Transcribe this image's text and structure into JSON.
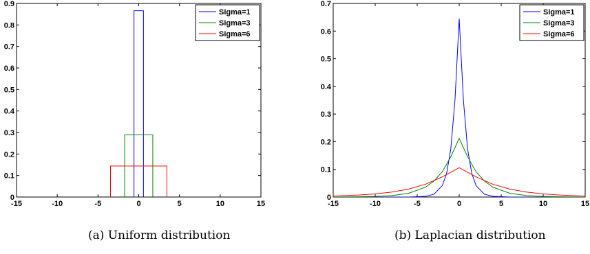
{
  "chart_data": [
    {
      "type": "line",
      "title": "",
      "caption": "(a) Uniform distribution",
      "xlabel": "",
      "ylabel": "",
      "xlim": [
        -15,
        15
      ],
      "ylim": [
        0,
        0.9
      ],
      "xticks": [
        -15,
        -10,
        -5,
        0,
        5,
        10,
        15
      ],
      "yticks": [
        0,
        0.1,
        0.2,
        0.3,
        0.4,
        0.5,
        0.6,
        0.7,
        0.8,
        0.9
      ],
      "ytick_labels": [
        "0",
        "0.1",
        "0.2",
        "0.3",
        "0.4",
        "0.5",
        "0.6",
        "0.7",
        "0.8",
        "0.9"
      ],
      "xtick_labels": [
        "-15",
        "-10",
        "-5",
        "0",
        "5",
        "10",
        "15"
      ],
      "grid": false,
      "legend_position": "top-right",
      "series": [
        {
          "name": "Sigma=1",
          "color": "#0000ff",
          "x": [
            -0.58,
            -0.58,
            0.58,
            0.58
          ],
          "y": [
            0,
            0.866,
            0.866,
            0
          ]
        },
        {
          "name": "Sigma=3",
          "color": "#008000",
          "x": [
            -1.73,
            -1.73,
            1.73,
            1.73
          ],
          "y": [
            0,
            0.289,
            0.289,
            0
          ]
        },
        {
          "name": "Sigma=6",
          "color": "#ff0000",
          "x": [
            -3.46,
            -3.46,
            3.46,
            3.46
          ],
          "y": [
            0,
            0.144,
            0.144,
            0
          ]
        }
      ]
    },
    {
      "type": "line",
      "title": "",
      "caption": "(b) Laplacian distribution",
      "xlabel": "",
      "ylabel": "",
      "xlim": [
        -15,
        15
      ],
      "ylim": [
        0,
        0.7
      ],
      "xticks": [
        -15,
        -10,
        -5,
        0,
        5,
        10,
        15
      ],
      "yticks": [
        0,
        0.1,
        0.2,
        0.3,
        0.4,
        0.5,
        0.6,
        0.7
      ],
      "ytick_labels": [
        "0",
        "0.1",
        "0.2",
        "0.3",
        "0.4",
        "0.5",
        "0.6",
        "0.7"
      ],
      "xtick_labels": [
        "-15",
        "-10",
        "-5",
        "0",
        "5",
        "10",
        "15"
      ],
      "grid": false,
      "legend_position": "top-right",
      "series": [
        {
          "name": "Sigma=1",
          "color": "#0000ff",
          "x": [
            -15,
            -10,
            -6,
            -4,
            -3,
            -2,
            -1.5,
            -1,
            -0.5,
            0,
            0.5,
            1,
            1.5,
            2,
            3,
            4,
            6,
            10,
            15
          ],
          "y": [
            0,
            0,
            0.0001,
            0.0024,
            0.0101,
            0.0418,
            0.0851,
            0.173,
            0.3512,
            0.645,
            0.3512,
            0.173,
            0.0851,
            0.0418,
            0.0101,
            0.0024,
            0.0001,
            0,
            0
          ]
        },
        {
          "name": "Sigma=3",
          "color": "#008000",
          "x": [
            -15,
            -12,
            -10,
            -8,
            -6,
            -4,
            -3,
            -2,
            -1,
            0,
            1,
            2,
            3,
            4,
            6,
            8,
            10,
            12,
            15
          ],
          "y": [
            0.0001,
            0.0008,
            0.0021,
            0.0054,
            0.0137,
            0.0358,
            0.0579,
            0.0919,
            0.1456,
            0.212,
            0.1456,
            0.0919,
            0.0579,
            0.0358,
            0.0137,
            0.0054,
            0.0021,
            0.0008,
            0.0001
          ]
        },
        {
          "name": "Sigma=6",
          "color": "#ff0000",
          "x": [
            -15,
            -12,
            -10,
            -8,
            -6,
            -4,
            -2,
            -1,
            0,
            1,
            2,
            4,
            6,
            8,
            10,
            12,
            15
          ],
          "y": [
            0.0034,
            0.007,
            0.0111,
            0.0179,
            0.0289,
            0.0464,
            0.0731,
            0.0895,
            0.106,
            0.0895,
            0.0731,
            0.0464,
            0.0289,
            0.0179,
            0.0111,
            0.007,
            0.0034
          ]
        }
      ]
    }
  ]
}
